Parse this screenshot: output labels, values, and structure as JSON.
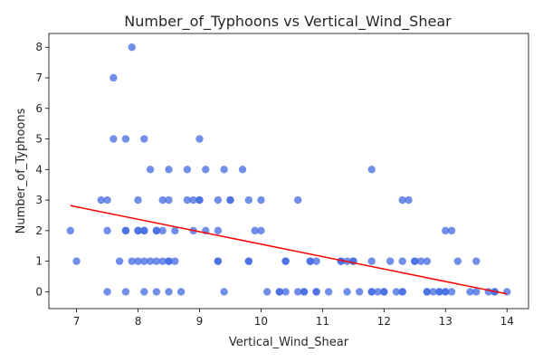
{
  "chart_data": {
    "type": "scatter",
    "title": "Number_of_Typhoons vs Vertical_Wind_Shear",
    "xlabel": "Vertical_Wind_Shear",
    "ylabel": "Number_of_Typhoons",
    "xlim": [
      6.55,
      14.35
    ],
    "ylim": [
      -0.55,
      8.45
    ],
    "xticks": [
      7,
      8,
      9,
      10,
      11,
      12,
      13,
      14
    ],
    "yticks": [
      0,
      1,
      2,
      3,
      4,
      5,
      6,
      7,
      8
    ],
    "grid": false,
    "legend": "none",
    "colors": {
      "points": "#4169e1",
      "trend": "#ff0000"
    },
    "points": [
      {
        "x": 6.9,
        "y": 2
      },
      {
        "x": 7.0,
        "y": 1
      },
      {
        "x": 7.4,
        "y": 3
      },
      {
        "x": 7.5,
        "y": 3
      },
      {
        "x": 7.5,
        "y": 2
      },
      {
        "x": 7.5,
        "y": 0
      },
      {
        "x": 7.6,
        "y": 7
      },
      {
        "x": 7.6,
        "y": 5
      },
      {
        "x": 7.7,
        "y": 1
      },
      {
        "x": 7.8,
        "y": 5
      },
      {
        "x": 7.8,
        "y": 2
      },
      {
        "x": 7.8,
        "y": 2
      },
      {
        "x": 7.8,
        "y": 0
      },
      {
        "x": 7.9,
        "y": 8
      },
      {
        "x": 7.9,
        "y": 1
      },
      {
        "x": 8.0,
        "y": 3
      },
      {
        "x": 8.0,
        "y": 2
      },
      {
        "x": 8.0,
        "y": 2
      },
      {
        "x": 8.0,
        "y": 1
      },
      {
        "x": 8.1,
        "y": 5
      },
      {
        "x": 8.1,
        "y": 2
      },
      {
        "x": 8.1,
        "y": 2
      },
      {
        "x": 8.1,
        "y": 1
      },
      {
        "x": 8.1,
        "y": 0
      },
      {
        "x": 8.2,
        "y": 4
      },
      {
        "x": 8.2,
        "y": 1
      },
      {
        "x": 8.3,
        "y": 2
      },
      {
        "x": 8.3,
        "y": 2
      },
      {
        "x": 8.3,
        "y": 1
      },
      {
        "x": 8.3,
        "y": 0
      },
      {
        "x": 8.4,
        "y": 3
      },
      {
        "x": 8.4,
        "y": 2
      },
      {
        "x": 8.4,
        "y": 1
      },
      {
        "x": 8.5,
        "y": 4
      },
      {
        "x": 8.5,
        "y": 3
      },
      {
        "x": 8.5,
        "y": 1
      },
      {
        "x": 8.5,
        "y": 1
      },
      {
        "x": 8.5,
        "y": 0
      },
      {
        "x": 8.6,
        "y": 2
      },
      {
        "x": 8.6,
        "y": 1
      },
      {
        "x": 8.7,
        "y": 0
      },
      {
        "x": 8.8,
        "y": 4
      },
      {
        "x": 8.8,
        "y": 3
      },
      {
        "x": 8.9,
        "y": 3
      },
      {
        "x": 8.9,
        "y": 2
      },
      {
        "x": 9.0,
        "y": 5
      },
      {
        "x": 9.0,
        "y": 3
      },
      {
        "x": 9.0,
        "y": 3
      },
      {
        "x": 9.1,
        "y": 4
      },
      {
        "x": 9.1,
        "y": 2
      },
      {
        "x": 9.3,
        "y": 3
      },
      {
        "x": 9.3,
        "y": 2
      },
      {
        "x": 9.3,
        "y": 1
      },
      {
        "x": 9.3,
        "y": 1
      },
      {
        "x": 9.4,
        "y": 4
      },
      {
        "x": 9.4,
        "y": 0
      },
      {
        "x": 9.5,
        "y": 3
      },
      {
        "x": 9.5,
        "y": 3
      },
      {
        "x": 9.7,
        "y": 4
      },
      {
        "x": 9.8,
        "y": 3
      },
      {
        "x": 9.8,
        "y": 1
      },
      {
        "x": 9.8,
        "y": 1
      },
      {
        "x": 9.9,
        "y": 2
      },
      {
        "x": 10.0,
        "y": 3
      },
      {
        "x": 10.0,
        "y": 2
      },
      {
        "x": 10.1,
        "y": 0
      },
      {
        "x": 10.3,
        "y": 0
      },
      {
        "x": 10.3,
        "y": 0
      },
      {
        "x": 10.4,
        "y": 1
      },
      {
        "x": 10.4,
        "y": 1
      },
      {
        "x": 10.4,
        "y": 0
      },
      {
        "x": 10.6,
        "y": 3
      },
      {
        "x": 10.6,
        "y": 0
      },
      {
        "x": 10.7,
        "y": 0
      },
      {
        "x": 10.7,
        "y": 0
      },
      {
        "x": 10.8,
        "y": 1
      },
      {
        "x": 10.8,
        "y": 1
      },
      {
        "x": 10.9,
        "y": 1
      },
      {
        "x": 10.9,
        "y": 0
      },
      {
        "x": 10.9,
        "y": 0
      },
      {
        "x": 11.1,
        "y": 0
      },
      {
        "x": 11.3,
        "y": 1
      },
      {
        "x": 11.3,
        "y": 1
      },
      {
        "x": 11.4,
        "y": 1
      },
      {
        "x": 11.4,
        "y": 0
      },
      {
        "x": 11.5,
        "y": 1
      },
      {
        "x": 11.5,
        "y": 1
      },
      {
        "x": 11.6,
        "y": 0
      },
      {
        "x": 11.8,
        "y": 4
      },
      {
        "x": 11.8,
        "y": 1
      },
      {
        "x": 11.8,
        "y": 0
      },
      {
        "x": 11.8,
        "y": 0
      },
      {
        "x": 11.9,
        "y": 0
      },
      {
        "x": 12.0,
        "y": 0
      },
      {
        "x": 12.0,
        "y": 0
      },
      {
        "x": 12.1,
        "y": 1
      },
      {
        "x": 12.2,
        "y": 0
      },
      {
        "x": 12.3,
        "y": 3
      },
      {
        "x": 12.3,
        "y": 1
      },
      {
        "x": 12.3,
        "y": 0
      },
      {
        "x": 12.3,
        "y": 0
      },
      {
        "x": 12.4,
        "y": 3
      },
      {
        "x": 12.5,
        "y": 1
      },
      {
        "x": 12.5,
        "y": 1
      },
      {
        "x": 12.6,
        "y": 1
      },
      {
        "x": 12.7,
        "y": 1
      },
      {
        "x": 12.7,
        "y": 0
      },
      {
        "x": 12.7,
        "y": 0
      },
      {
        "x": 12.8,
        "y": 0
      },
      {
        "x": 12.9,
        "y": 0
      },
      {
        "x": 12.9,
        "y": 0
      },
      {
        "x": 13.0,
        "y": 2
      },
      {
        "x": 13.0,
        "y": 0
      },
      {
        "x": 13.0,
        "y": 0
      },
      {
        "x": 13.1,
        "y": 2
      },
      {
        "x": 13.1,
        "y": 0
      },
      {
        "x": 13.2,
        "y": 1
      },
      {
        "x": 13.4,
        "y": 0
      },
      {
        "x": 13.5,
        "y": 1
      },
      {
        "x": 13.5,
        "y": 0
      },
      {
        "x": 13.7,
        "y": 0
      },
      {
        "x": 13.8,
        "y": 0
      },
      {
        "x": 13.8,
        "y": 0
      },
      {
        "x": 14.0,
        "y": 0
      }
    ],
    "trend_line": {
      "x": [
        6.9,
        14.0
      ],
      "y": [
        2.82,
        -0.07
      ]
    }
  }
}
